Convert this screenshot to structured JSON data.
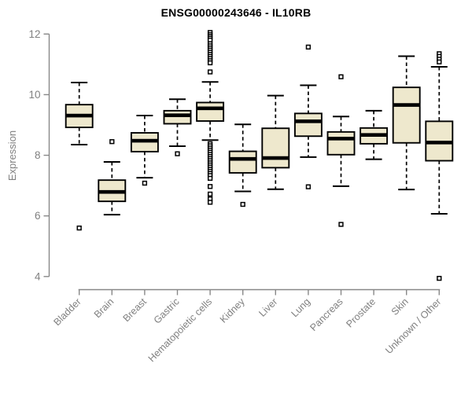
{
  "colors": {
    "box_fill": "#EEE8CD",
    "box_border": "#000000",
    "median_line": "#000000",
    "whisker": "#000000",
    "outlier": "#000000",
    "axis_line": "#888888",
    "axis_text": "#808080",
    "title_text": "#000000",
    "background": "#FFFFFF"
  },
  "chart_data": {
    "type": "box",
    "title": "ENSG00000243646 - IL10RB",
    "xlabel": "",
    "ylabel": "Expression",
    "ylim": [
      4,
      12
    ],
    "yticks": [
      4,
      6,
      8,
      10,
      12
    ],
    "grid": false,
    "legend": false,
    "x_tick_rotation": 45,
    "categories": [
      "Bladder",
      "Brain",
      "Breast",
      "Gastric",
      "Hematopoietic cells",
      "Kidney",
      "Liver",
      "Lung",
      "Pancreas",
      "Prostate",
      "Skin",
      "Unknown / Other"
    ],
    "series": [
      {
        "name": "Bladder",
        "whisker_low": 8.35,
        "q1": 8.92,
        "median": 9.31,
        "q3": 9.67,
        "whisker_high": 10.4,
        "outliers": [
          5.6
        ]
      },
      {
        "name": "Brain",
        "whisker_low": 6.04,
        "q1": 6.48,
        "median": 6.79,
        "q3": 7.18,
        "whisker_high": 7.78,
        "outliers": [
          8.45
        ]
      },
      {
        "name": "Breast",
        "whisker_low": 7.26,
        "q1": 8.12,
        "median": 8.48,
        "q3": 8.74,
        "whisker_high": 9.31,
        "outliers": [
          7.08
        ]
      },
      {
        "name": "Gastric",
        "whisker_low": 8.3,
        "q1": 9.04,
        "median": 9.32,
        "q3": 9.47,
        "whisker_high": 9.85,
        "outliers": [
          8.05
        ]
      },
      {
        "name": "Hematopoietic cells",
        "whisker_low": 8.5,
        "q1": 9.13,
        "median": 9.55,
        "q3": 9.74,
        "whisker_high": 10.42,
        "outliers": [
          12.05,
          11.98,
          11.92,
          11.86,
          11.8,
          11.68,
          11.61,
          11.54,
          11.47,
          11.4,
          11.33,
          11.26,
          11.19,
          11.12,
          11.05,
          10.75,
          8.38,
          8.31,
          8.24,
          8.17,
          8.1,
          8.03,
          7.96,
          7.89,
          7.82,
          7.75,
          7.68,
          7.61,
          7.54,
          7.47,
          7.4,
          7.33,
          7.24,
          6.97,
          6.72,
          6.56,
          6.45
        ]
      },
      {
        "name": "Kidney",
        "whisker_low": 6.81,
        "q1": 7.42,
        "median": 7.88,
        "q3": 8.13,
        "whisker_high": 9.02,
        "outliers": [
          6.38
        ]
      },
      {
        "name": "Liver",
        "whisker_low": 6.88,
        "q1": 7.59,
        "median": 7.91,
        "q3": 8.89,
        "whisker_high": 9.97,
        "outliers": []
      },
      {
        "name": "Lung",
        "whisker_low": 7.94,
        "q1": 8.63,
        "median": 9.12,
        "q3": 9.38,
        "whisker_high": 10.31,
        "outliers": [
          11.57,
          6.96
        ]
      },
      {
        "name": "Pancreas",
        "whisker_low": 6.98,
        "q1": 8.02,
        "median": 8.55,
        "q3": 8.77,
        "whisker_high": 9.28,
        "outliers": [
          10.59,
          5.72
        ]
      },
      {
        "name": "Prostate",
        "whisker_low": 7.87,
        "q1": 8.38,
        "median": 8.67,
        "q3": 8.9,
        "whisker_high": 9.47,
        "outliers": []
      },
      {
        "name": "Skin",
        "whisker_low": 6.87,
        "q1": 8.41,
        "median": 9.66,
        "q3": 10.24,
        "whisker_high": 11.27,
        "outliers": []
      },
      {
        "name": "Unknown / Other",
        "whisker_low": 6.07,
        "q1": 7.82,
        "median": 8.42,
        "q3": 9.12,
        "whisker_high": 10.92,
        "outliers": [
          11.35,
          11.26,
          11.17,
          11.08,
          3.94
        ]
      }
    ]
  }
}
